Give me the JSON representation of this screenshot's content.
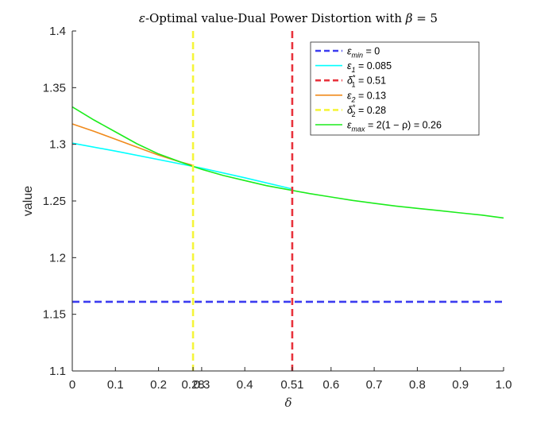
{
  "chart_data": {
    "type": "line",
    "title": "ε-Optimal value-Dual Power Distortion with β = 5",
    "xlabel": "δ",
    "ylabel": "value",
    "xlim": [
      0,
      1.0
    ],
    "ylim": [
      1.1,
      1.4
    ],
    "x_ticks": [
      "0",
      "0.1",
      "0.2",
      "0.28",
      "0.3",
      "0.4",
      "0.51",
      "0.6",
      "0.7",
      "0.8",
      "0.9",
      "1.0"
    ],
    "x_tick_values": [
      0,
      0.1,
      0.2,
      0.28,
      0.3,
      0.4,
      0.51,
      0.6,
      0.7,
      0.8,
      0.9,
      1.0
    ],
    "y_ticks": [
      "1.1",
      "1.15",
      "1.2",
      "1.25",
      "1.3",
      "1.35",
      "1.4"
    ],
    "y_tick_values": [
      1.1,
      1.15,
      1.2,
      1.25,
      1.3,
      1.35,
      1.4
    ],
    "grid": false,
    "legend_position": "top-right",
    "series": [
      {
        "name": "ε_min = 0",
        "color": "#3b3bf0",
        "style": "dashed",
        "kind": "hline",
        "y": 1.161
      },
      {
        "name": "ε_1 = 0.085",
        "color": "#00ffff",
        "style": "solid",
        "kind": "curve",
        "x": [
          0,
          0.1,
          0.2,
          0.28,
          0.3,
          0.4,
          0.5,
          0.51
        ],
        "y": [
          1.301,
          1.294,
          1.2865,
          1.2805,
          1.279,
          1.2705,
          1.2615,
          1.2605
        ]
      },
      {
        "name": "δ*_1 = 0.51",
        "color": "#e8333d",
        "style": "dashed",
        "kind": "vline",
        "x": 0.51
      },
      {
        "name": "ε_2 = 0.13",
        "color": "#f08a1c",
        "style": "solid",
        "kind": "curve",
        "x": [
          0,
          0.05,
          0.1,
          0.15,
          0.2,
          0.25,
          0.28
        ],
        "y": [
          1.318,
          1.3115,
          1.3045,
          1.2975,
          1.2905,
          1.2845,
          1.2815
        ]
      },
      {
        "name": "δ*_2 = 0.28",
        "color": "#f5f53a",
        "style": "dashed",
        "kind": "vline",
        "x": 0.28
      },
      {
        "name": "ε_max = 2(1 − ρ) = 0.26",
        "color": "#1cec1c",
        "style": "solid",
        "kind": "curve",
        "x": [
          0,
          0.05,
          0.1,
          0.15,
          0.2,
          0.25,
          0.28,
          0.3,
          0.35,
          0.4,
          0.45,
          0.5,
          0.55,
          0.6,
          0.65,
          0.7,
          0.75,
          0.8,
          0.85,
          0.9,
          0.95,
          1.0
        ],
        "y": [
          1.333,
          1.3215,
          1.311,
          1.3005,
          1.2915,
          1.2845,
          1.2805,
          1.278,
          1.2725,
          1.268,
          1.2635,
          1.26,
          1.2565,
          1.2535,
          1.2505,
          1.248,
          1.2455,
          1.2435,
          1.2415,
          1.2395,
          1.2375,
          1.235
        ]
      }
    ]
  },
  "legend": {
    "entries": [
      {
        "base": "ε",
        "sub": "min",
        "sup": "",
        "rest": " = 0"
      },
      {
        "base": "ε",
        "sub": "1",
        "sup": "",
        "rest": " = 0.085"
      },
      {
        "base": "δ",
        "sub": "1",
        "sup": "*",
        "rest": " = 0.51"
      },
      {
        "base": "ε",
        "sub": "2",
        "sup": "",
        "rest": " = 0.13"
      },
      {
        "base": "δ",
        "sub": "2",
        "sup": "*",
        "rest": " = 0.28"
      },
      {
        "base": "ε",
        "sub": "max",
        "sup": "",
        "rest": " = 2(1 − ρ) = 0.26"
      }
    ]
  },
  "title_parts": {
    "eps": "ε",
    "text": "-Optimal value-Dual Power Distortion with ",
    "beta": "β",
    "eq": " = 5"
  }
}
